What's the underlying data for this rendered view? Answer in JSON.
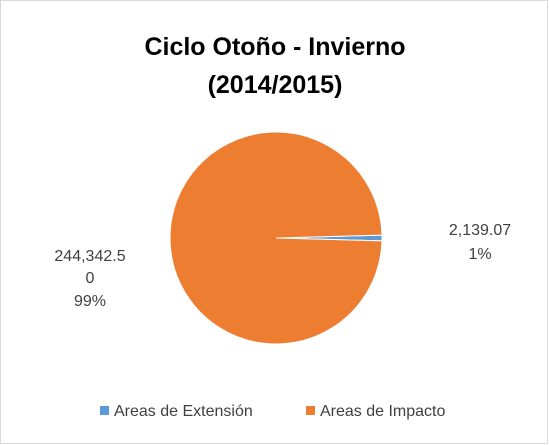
{
  "chart_data": {
    "type": "pie",
    "title": "Ciclo Otoño - Invierno (2014/2015)",
    "categories": [
      "Areas de Extensión",
      "Areas de Impacto"
    ],
    "values": [
      2139.07,
      244342.5
    ],
    "value_labels": [
      "2,139.07",
      "244,342.50"
    ],
    "percent_labels": [
      "1%",
      "99%"
    ],
    "colors": [
      "#5b9bd5",
      "#ed7d31"
    ],
    "legend": "bottom"
  }
}
